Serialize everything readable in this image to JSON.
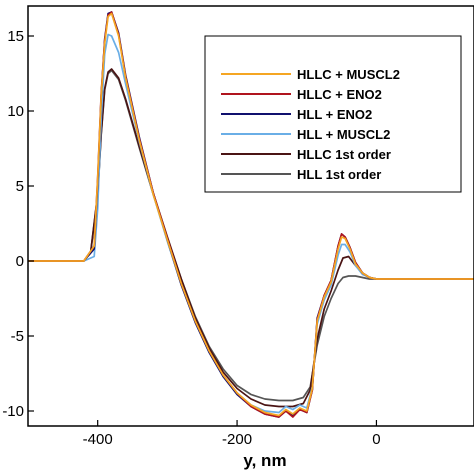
{
  "chart_data": {
    "type": "line",
    "title": "",
    "xlabel": "y, nm",
    "ylabel": "",
    "xlim": [
      -500,
      140
    ],
    "ylim": [
      -11,
      17
    ],
    "xticks": [
      -400,
      -200,
      0
    ],
    "xtick_labels": [
      "-400",
      "-200",
      "0"
    ],
    "yticks": [
      15,
      10,
      5,
      0,
      -5,
      -10
    ],
    "ytick_labels": [
      "15",
      "10",
      "5",
      "0",
      "-5",
      "-10"
    ],
    "grid": false,
    "legend_position": "top-right",
    "series": [
      {
        "name": "HLLC + MUSCL2",
        "color": "#f5a623",
        "x": [
          -500,
          -420,
          -405,
          -400,
          -395,
          -390,
          -385,
          -380,
          -370,
          -360,
          -340,
          -320,
          -300,
          -280,
          -260,
          -240,
          -220,
          -200,
          -180,
          -160,
          -140,
          -130,
          -120,
          -110,
          -100,
          -92,
          -85,
          -75,
          -65,
          -55,
          -50,
          -45,
          -38,
          -30,
          -20,
          -10,
          0,
          20,
          60,
          140
        ],
        "y": [
          0,
          0,
          1.0,
          5.5,
          11.0,
          14.5,
          16.3,
          16.5,
          15.0,
          12.2,
          8.0,
          4.4,
          1.4,
          -1.5,
          -4.0,
          -6.0,
          -7.6,
          -8.8,
          -9.6,
          -10.1,
          -10.3,
          -9.9,
          -10.2,
          -9.8,
          -10.0,
          -8.5,
          -4.0,
          -2.4,
          -1.4,
          0.8,
          1.6,
          1.5,
          0.8,
          -0.2,
          -0.8,
          -1.1,
          -1.2,
          -1.2,
          -1.2,
          -1.2
        ]
      },
      {
        "name": "HLLC + ENO2",
        "color": "#b0141e",
        "x": [
          -500,
          -420,
          -405,
          -400,
          -395,
          -390,
          -385,
          -380,
          -370,
          -360,
          -340,
          -320,
          -300,
          -280,
          -260,
          -240,
          -220,
          -200,
          -180,
          -160,
          -140,
          -130,
          -120,
          -110,
          -100,
          -92,
          -85,
          -75,
          -65,
          -55,
          -50,
          -45,
          -38,
          -30,
          -20,
          -10,
          0,
          20,
          60,
          140
        ],
        "y": [
          0,
          0,
          1.0,
          5.6,
          11.2,
          14.7,
          16.4,
          16.6,
          15.1,
          12.3,
          8.1,
          4.5,
          1.5,
          -1.5,
          -4.0,
          -6.0,
          -7.6,
          -8.8,
          -9.7,
          -10.2,
          -10.4,
          -10.0,
          -10.4,
          -9.9,
          -10.1,
          -8.6,
          -3.9,
          -2.3,
          -1.3,
          1.0,
          1.8,
          1.6,
          0.9,
          -0.1,
          -0.8,
          -1.1,
          -1.2,
          -1.2,
          -1.2,
          -1.2
        ]
      },
      {
        "name": "HLL + ENO2",
        "color": "#10106e",
        "x": [
          -500,
          -420,
          -405,
          -400,
          -395,
          -390,
          -385,
          -380,
          -370,
          -360,
          -340,
          -320,
          -300,
          -280,
          -260,
          -240,
          -220,
          -200,
          -180,
          -160,
          -140,
          -130,
          -120,
          -110,
          -100,
          -92,
          -85,
          -75,
          -65,
          -55,
          -50,
          -45,
          -38,
          -30,
          -20,
          -10,
          0,
          20,
          60,
          140
        ],
        "y": [
          0,
          0,
          0.8,
          5.2,
          11.0,
          14.8,
          16.5,
          16.6,
          15.2,
          12.4,
          8.2,
          4.5,
          1.4,
          -1.6,
          -4.1,
          -6.1,
          -7.7,
          -8.9,
          -9.7,
          -10.2,
          -10.4,
          -10.0,
          -10.3,
          -9.9,
          -10.1,
          -8.6,
          -3.8,
          -2.3,
          -1.3,
          1.0,
          1.8,
          1.6,
          0.9,
          -0.1,
          -0.8,
          -1.1,
          -1.2,
          -1.2,
          -1.2,
          -1.2
        ]
      },
      {
        "name": "HLL + MUSCL2",
        "color": "#6aaee6",
        "x": [
          -500,
          -420,
          -405,
          -400,
          -395,
          -390,
          -385,
          -380,
          -370,
          -360,
          -340,
          -320,
          -300,
          -280,
          -260,
          -240,
          -220,
          -200,
          -180,
          -160,
          -140,
          -130,
          -120,
          -110,
          -100,
          -92,
          -85,
          -75,
          -65,
          -55,
          -50,
          -45,
          -38,
          -30,
          -20,
          -10,
          0,
          20,
          60,
          140
        ],
        "y": [
          0,
          0,
          0.3,
          3.5,
          9.5,
          13.8,
          15.1,
          15.0,
          13.9,
          11.8,
          7.9,
          4.4,
          1.3,
          -1.6,
          -4.1,
          -6.1,
          -7.7,
          -8.8,
          -9.6,
          -10.0,
          -10.1,
          -9.7,
          -9.9,
          -9.6,
          -9.8,
          -8.4,
          -4.2,
          -2.6,
          -1.6,
          0.4,
          1.1,
          1.1,
          0.6,
          -0.3,
          -0.9,
          -1.1,
          -1.2,
          -1.2,
          -1.2,
          -1.2
        ]
      },
      {
        "name": "HLLC 1st order",
        "color": "#4a1414",
        "x": [
          -500,
          -420,
          -410,
          -400,
          -395,
          -390,
          -385,
          -380,
          -370,
          -360,
          -340,
          -320,
          -300,
          -280,
          -260,
          -240,
          -220,
          -200,
          -180,
          -160,
          -140,
          -120,
          -105,
          -95,
          -85,
          -75,
          -65,
          -55,
          -48,
          -40,
          -30,
          -20,
          -10,
          0,
          20,
          60,
          140
        ],
        "y": [
          0,
          0,
          0.6,
          4.5,
          8.5,
          11.5,
          12.6,
          12.8,
          12.2,
          10.8,
          7.6,
          4.5,
          1.6,
          -1.2,
          -3.8,
          -5.8,
          -7.4,
          -8.5,
          -9.2,
          -9.6,
          -9.7,
          -9.7,
          -9.5,
          -8.6,
          -5.2,
          -3.2,
          -2.0,
          -0.6,
          0.2,
          0.3,
          -0.3,
          -0.8,
          -1.1,
          -1.2,
          -1.2,
          -1.2,
          -1.2
        ]
      },
      {
        "name": "HLL 1st order",
        "color": "#555555",
        "x": [
          -500,
          -420,
          -410,
          -400,
          -395,
          -390,
          -385,
          -380,
          -370,
          -360,
          -340,
          -320,
          -300,
          -280,
          -260,
          -240,
          -220,
          -200,
          -180,
          -160,
          -140,
          -120,
          -105,
          -95,
          -85,
          -75,
          -65,
          -55,
          -48,
          -40,
          -30,
          -20,
          -10,
          0,
          20,
          60,
          140
        ],
        "y": [
          0,
          0,
          0.6,
          4.4,
          8.4,
          11.4,
          12.5,
          12.7,
          12.1,
          10.7,
          7.5,
          4.4,
          1.5,
          -1.2,
          -3.7,
          -5.7,
          -7.2,
          -8.3,
          -8.9,
          -9.2,
          -9.3,
          -9.3,
          -9.1,
          -8.4,
          -5.6,
          -3.7,
          -2.5,
          -1.5,
          -1.1,
          -1.0,
          -1.0,
          -1.1,
          -1.2,
          -1.2,
          -1.2,
          -1.2,
          -1.2
        ]
      }
    ]
  }
}
